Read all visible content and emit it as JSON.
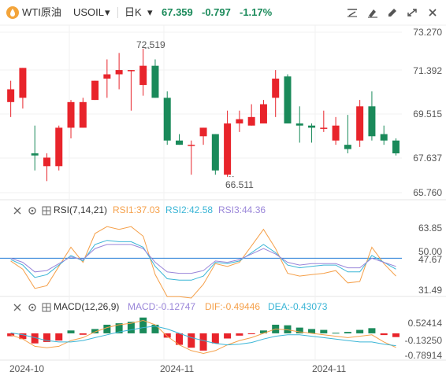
{
  "header": {
    "symbol_name": "WTI原油",
    "symbol_code": "USOIL",
    "interval": "日K",
    "price": "67.359",
    "change": "-0.797",
    "change_pct": "-1.17%",
    "tool_icons": [
      "draw-line-icon",
      "paint-icon",
      "pen-icon",
      "fullscreen-icon",
      "close-icon"
    ]
  },
  "colors": {
    "up": "#e8242b",
    "down": "#1a8a5a",
    "rsi1": "#f5a04a",
    "rsi2": "#3ab5d6",
    "rsi3": "#9a86d9",
    "diff": "#f5a04a",
    "dea": "#3ab5d6",
    "reference": "#1f7ad6"
  },
  "main_panel": {
    "y_labels": [
      "73.270",
      "71.392",
      "69.515",
      "67.637",
      "65.760"
    ],
    "high_label": "72.519",
    "low_label": "66.511"
  },
  "rsi_panel": {
    "indicator": "RSI(7,14,21)",
    "rsi1": "RSI1:37.03",
    "rsi2": "RSI2:42.58",
    "rsi3": "RSI3:44.36",
    "y_labels": [
      "63.85",
      "50.00",
      "47.67",
      "31.49"
    ]
  },
  "macd_panel": {
    "indicator": "MACD(12,26,9)",
    "macd": "MACD:-0.12747",
    "dif": "DIF:-0.49446",
    "dea": "DEA:-0.43073",
    "y_labels": [
      "0.52414",
      "-0.13250",
      "-0.78914"
    ]
  },
  "x_labels": [
    "2024-10",
    "2024-11",
    "2024-11"
  ],
  "chart_data": {
    "type": "candlestick",
    "price_range": [
      65.76,
      73.27
    ],
    "candles": [
      {
        "o": 70.0,
        "h": 71.0,
        "l": 69.3,
        "c": 70.6
      },
      {
        "o": 70.2,
        "h": 71.6,
        "l": 69.7,
        "c": 71.6
      },
      {
        "o": 67.6,
        "h": 68.9,
        "l": 66.8,
        "c": 67.5
      },
      {
        "o": 67.0,
        "h": 67.6,
        "l": 66.3,
        "c": 67.4
      },
      {
        "o": 67.0,
        "h": 68.9,
        "l": 66.8,
        "c": 68.8
      },
      {
        "o": 68.8,
        "h": 70.1,
        "l": 68.3,
        "c": 70.0
      },
      {
        "o": 68.8,
        "h": 70.2,
        "l": 68.8,
        "c": 70.0
      },
      {
        "o": 70.1,
        "h": 71.0,
        "l": 70.1,
        "c": 71.0
      },
      {
        "o": 71.1,
        "h": 72.0,
        "l": 70.2,
        "c": 71.3
      },
      {
        "o": 71.3,
        "h": 72.3,
        "l": 70.6,
        "c": 71.5
      },
      {
        "o": 71.5,
        "h": 71.5,
        "l": 69.6,
        "c": 71.5
      },
      {
        "o": 70.8,
        "h": 72.5,
        "l": 70.3,
        "c": 71.7
      },
      {
        "o": 71.7,
        "h": 72.0,
        "l": 70.2,
        "c": 70.2
      },
      {
        "o": 70.2,
        "h": 70.5,
        "l": 68.0,
        "c": 68.2
      },
      {
        "o": 68.2,
        "h": 68.5,
        "l": 68.0,
        "c": 68.0
      },
      {
        "o": 68.0,
        "h": 68.2,
        "l": 66.6,
        "c": 68.0
      },
      {
        "o": 68.4,
        "h": 68.8,
        "l": 68.0,
        "c": 68.8
      },
      {
        "o": 68.5,
        "h": 68.5,
        "l": 66.6,
        "c": 66.8
      },
      {
        "o": 66.6,
        "h": 69.6,
        "l": 66.5,
        "c": 69.0
      },
      {
        "o": 69.0,
        "h": 69.6,
        "l": 68.6,
        "c": 69.2
      },
      {
        "o": 68.9,
        "h": 69.9,
        "l": 68.9,
        "c": 69.3
      },
      {
        "o": 69.0,
        "h": 70.1,
        "l": 69.0,
        "c": 69.9
      },
      {
        "o": 70.2,
        "h": 71.5,
        "l": 69.3,
        "c": 71.1
      },
      {
        "o": 71.2,
        "h": 71.3,
        "l": 69.0,
        "c": 69.0
      },
      {
        "o": 69.0,
        "h": 69.8,
        "l": 68.1,
        "c": 68.9
      },
      {
        "o": 68.9,
        "h": 69.0,
        "l": 68.1,
        "c": 68.8
      },
      {
        "o": 68.8,
        "h": 69.6,
        "l": 68.6,
        "c": 68.8
      },
      {
        "o": 68.2,
        "h": 69.3,
        "l": 68.0,
        "c": 68.9
      },
      {
        "o": 68.0,
        "h": 69.4,
        "l": 67.6,
        "c": 67.8
      },
      {
        "o": 68.2,
        "h": 70.1,
        "l": 67.9,
        "c": 69.8
      },
      {
        "o": 69.8,
        "h": 70.5,
        "l": 68.2,
        "c": 68.4
      },
      {
        "o": 68.5,
        "h": 68.9,
        "l": 68.0,
        "c": 68.2
      },
      {
        "o": 68.2,
        "h": 68.3,
        "l": 67.5,
        "c": 67.6
      }
    ],
    "rsi": {
      "rsi1": [
        48,
        42,
        28,
        30,
        44,
        58,
        47,
        68,
        73,
        71,
        73,
        66,
        38,
        22,
        22,
        21,
        31,
        46,
        44,
        47,
        59,
        71,
        57,
        39,
        37,
        38,
        39,
        41,
        32,
        33,
        58,
        46,
        37
      ],
      "rsi2": [
        49,
        45,
        36,
        38,
        45,
        52,
        48,
        60,
        63,
        62,
        62,
        58,
        44,
        35,
        34,
        34,
        37,
        47,
        46,
        48,
        54,
        60,
        54,
        45,
        43,
        44,
        45,
        45,
        40,
        40,
        52,
        47,
        42
      ],
      "rsi3": [
        50,
        47,
        40,
        41,
        46,
        51,
        49,
        57,
        60,
        60,
        60,
        57,
        47,
        40,
        39,
        39,
        41,
        48,
        47,
        49,
        53,
        57,
        53,
        47,
        45,
        46,
        46,
        46,
        43,
        43,
        50,
        47,
        44
      ]
    },
    "macd": {
      "hist": [
        -0.1,
        -0.2,
        -0.35,
        -0.3,
        -0.25,
        0.1,
        -0.05,
        0.15,
        0.3,
        0.35,
        0.4,
        0.55,
        0.3,
        -0.15,
        -0.4,
        -0.5,
        -0.6,
        -0.35,
        -0.18,
        -0.08,
        -0.03,
        0.1,
        0.3,
        0.28,
        0.2,
        0.15,
        0.12,
        0.02,
        0.05,
        0.12,
        0.18,
        -0.06,
        -0.13
      ],
      "dif": [
        -0.05,
        -0.2,
        -0.45,
        -0.5,
        -0.45,
        -0.25,
        -0.15,
        0.05,
        0.2,
        0.3,
        0.35,
        0.45,
        0.3,
        -0.1,
        -0.4,
        -0.6,
        -0.7,
        -0.6,
        -0.4,
        -0.25,
        -0.15,
        0.0,
        0.15,
        0.12,
        0.05,
        0.0,
        -0.05,
        -0.1,
        -0.15,
        -0.1,
        -0.05,
        -0.3,
        -0.49
      ],
      "dea": [
        0.02,
        -0.05,
        -0.15,
        -0.25,
        -0.3,
        -0.3,
        -0.25,
        -0.15,
        -0.05,
        0.05,
        0.12,
        0.2,
        0.25,
        0.15,
        0.0,
        -0.15,
        -0.25,
        -0.35,
        -0.4,
        -0.38,
        -0.32,
        -0.2,
        -0.1,
        -0.05,
        -0.05,
        -0.1,
        -0.15,
        -0.2,
        -0.25,
        -0.3,
        -0.3,
        -0.38,
        -0.43
      ]
    }
  }
}
